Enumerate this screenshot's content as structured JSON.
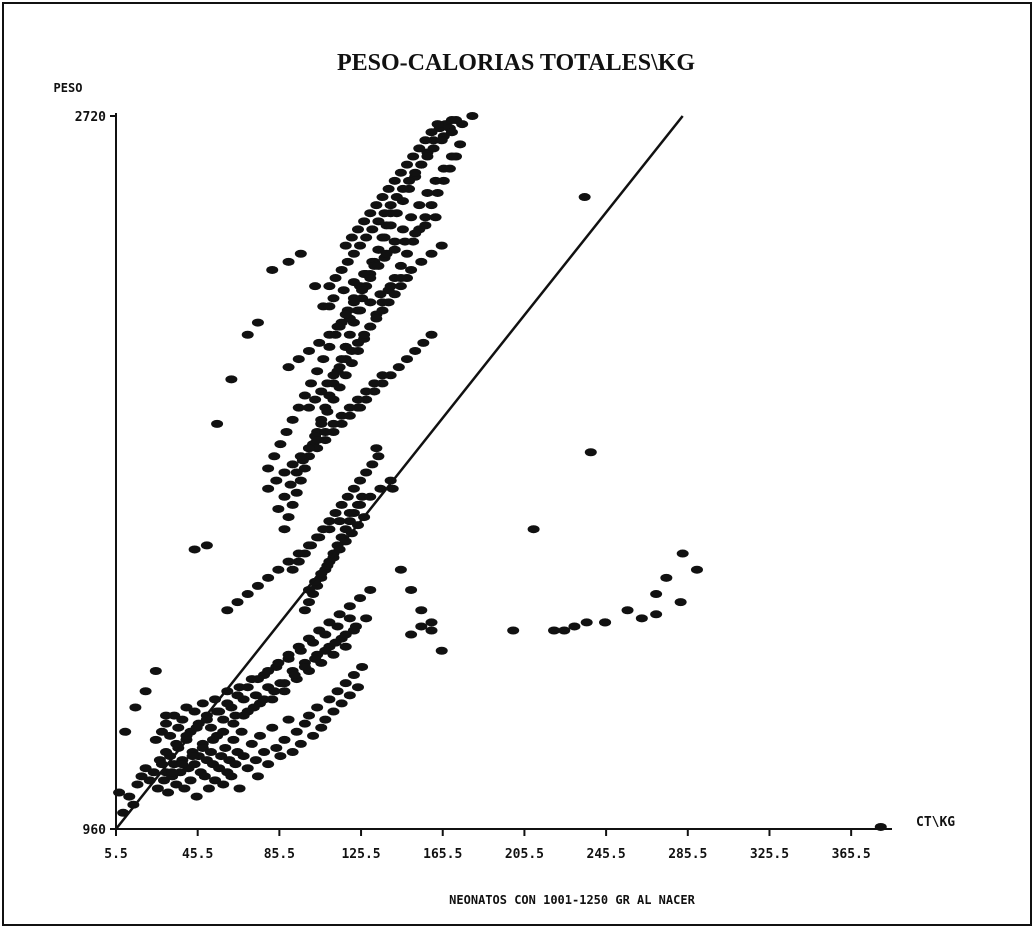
{
  "chart_data": {
    "type": "scatter",
    "title": "PESO-CALORIAS TOTALES\\KG",
    "xlabel": "CT\\KG",
    "ylabel": "PESO",
    "footer": "NEONATOS CON 1001-1250 GR AL NACER",
    "xlim": [
      5.5,
      385.5
    ],
    "ylim": [
      960,
      2720
    ],
    "x_ticks": [
      "5.5",
      "45.5",
      "85.5",
      "125.5",
      "165.5",
      "205.5",
      "245.5",
      "285.5",
      "325.5",
      "365.5"
    ],
    "y_ticks": [
      "2720",
      "960"
    ],
    "grid": false,
    "legend": "none",
    "colors": {
      "points": "#111111",
      "line": "#111111",
      "axes": "#111111"
    },
    "regression_line": {
      "x": [
        5.5,
        283
      ],
      "y": [
        960,
        2720
      ]
    },
    "series": [
      {
        "x": [
          7,
          9,
          12,
          14,
          16,
          18,
          20,
          22,
          24,
          26,
          27,
          28,
          29,
          30,
          31,
          32,
          33,
          34,
          35,
          36,
          37,
          38,
          39,
          40,
          41,
          42,
          43,
          44,
          45,
          46,
          47,
          48,
          49,
          50,
          51,
          52,
          53,
          54,
          55,
          56,
          57,
          58,
          59,
          60,
          61,
          62,
          63,
          64,
          65,
          66,
          67,
          68,
          70,
          72,
          74,
          75,
          76,
          78,
          80,
          82,
          84,
          86,
          88,
          90,
          92,
          94,
          96,
          98,
          100,
          102,
          104,
          106,
          108,
          110,
          112,
          114,
          116,
          118,
          120,
          122,
          124,
          126,
          25,
          28,
          30,
          32,
          34,
          36,
          38,
          40,
          42,
          44,
          46,
          48,
          50,
          52,
          54,
          56,
          58,
          60,
          62,
          64,
          66,
          68,
          70,
          72,
          74,
          76,
          78,
          80,
          82,
          84,
          86,
          88,
          90,
          92,
          94,
          96,
          98,
          100,
          102,
          104,
          106,
          108,
          110,
          112,
          114,
          116,
          118,
          120,
          122,
          30,
          35,
          40,
          45,
          50,
          55,
          60,
          65,
          70,
          75,
          80,
          85,
          90,
          95,
          100,
          105,
          110,
          115,
          120,
          125,
          130,
          33,
          38,
          43,
          48,
          53,
          58,
          63,
          68,
          73,
          78,
          83,
          88,
          93,
          98,
          103,
          108,
          113,
          118,
          123,
          128,
          98,
          100,
          102,
          104,
          106,
          108,
          110,
          112,
          114,
          116,
          118,
          120,
          122,
          124,
          126,
          100,
          103,
          106,
          109,
          112,
          115,
          118,
          121,
          124,
          127,
          92,
          95,
          98,
          101,
          104,
          107,
          110,
          113,
          116,
          119,
          122,
          125,
          128,
          131,
          134,
          88,
          90,
          92,
          94,
          96,
          98,
          100,
          102,
          104,
          106,
          108,
          110,
          112,
          114,
          116,
          118,
          120,
          122,
          124,
          126,
          128,
          130,
          132,
          134,
          136,
          138,
          140,
          85,
          88,
          91,
          94,
          97,
          100,
          103,
          106,
          109,
          112,
          115,
          118,
          121,
          124,
          127,
          130,
          133,
          136,
          139,
          142,
          145,
          148,
          151,
          154,
          157,
          160,
          163,
          166,
          169,
          172,
          80,
          83,
          86,
          89,
          92,
          95,
          98,
          101,
          104,
          107,
          110,
          113,
          116,
          119,
          122,
          125,
          128,
          131,
          134,
          137,
          140,
          143,
          146,
          149,
          152,
          155,
          158,
          161,
          164,
          167,
          170,
          90,
          95,
          100,
          105,
          110,
          115,
          120,
          125,
          130,
          135,
          140,
          145,
          150,
          155,
          160,
          165,
          107,
          112,
          117,
          122,
          127,
          132,
          137,
          142,
          147,
          152,
          157,
          162,
          114,
          118,
          122,
          126,
          130,
          134,
          138,
          142,
          146,
          150,
          154,
          158,
          162,
          166,
          170,
          174,
          118,
          121,
          124,
          127,
          130,
          133,
          136,
          139,
          142,
          145,
          148,
          151,
          154,
          157,
          160,
          163,
          166,
          169,
          172,
          110,
          113,
          116,
          119,
          122,
          125,
          128,
          131,
          134,
          137,
          140,
          143,
          146,
          149,
          152,
          155,
          158,
          161,
          165,
          170,
          175,
          180,
          100,
          103,
          106,
          109,
          112,
          115,
          118,
          121,
          124,
          127,
          130,
          133,
          136,
          139,
          142,
          145,
          148,
          104,
          108,
          112,
          116,
          120,
          124,
          128,
          132,
          136,
          140,
          144,
          148,
          152,
          156,
          160,
          80,
          84,
          88,
          92,
          96,
          100,
          104,
          108,
          112,
          116,
          120,
          124,
          128,
          132,
          136,
          60,
          65,
          70,
          75,
          80,
          85,
          90,
          95,
          100,
          105,
          110,
          115,
          120,
          125,
          130,
          135,
          140,
          44,
          50,
          55,
          62,
          70,
          75,
          82,
          90,
          96,
          103,
          110,
          118,
          125,
          133,
          141,
          145,
          150,
          155,
          160,
          165,
          200,
          225,
          236,
          245,
          256,
          270,
          282,
          235,
          238,
          210,
          220,
          230,
          245,
          263,
          270,
          275,
          283,
          290,
          10,
          15,
          20,
          25,
          30,
          150,
          155,
          160,
          380
        ],
        "y": [
          1050,
          1000,
          1040,
          1020,
          1070,
          1090,
          1110,
          1080,
          1100,
          1060,
          1130,
          1120,
          1080,
          1100,
          1050,
          1140,
          1090,
          1120,
          1070,
          1160,
          1100,
          1130,
          1060,
          1180,
          1110,
          1080,
          1150,
          1120,
          1040,
          1140,
          1100,
          1170,
          1090,
          1130,
          1060,
          1150,
          1120,
          1080,
          1190,
          1110,
          1140,
          1070,
          1160,
          1100,
          1130,
          1090,
          1180,
          1120,
          1150,
          1060,
          1200,
          1140,
          1110,
          1170,
          1130,
          1090,
          1190,
          1150,
          1120,
          1210,
          1160,
          1140,
          1180,
          1230,
          1150,
          1200,
          1170,
          1220,
          1240,
          1190,
          1260,
          1210,
          1230,
          1280,
          1250,
          1300,
          1270,
          1320,
          1290,
          1340,
          1310,
          1360,
          1180,
          1200,
          1220,
          1190,
          1240,
          1210,
          1230,
          1260,
          1200,
          1250,
          1220,
          1270,
          1240,
          1210,
          1280,
          1250,
          1230,
          1300,
          1260,
          1240,
          1310,
          1280,
          1250,
          1330,
          1290,
          1270,
          1340,
          1310,
          1280,
          1360,
          1320,
          1300,
          1380,
          1350,
          1330,
          1400,
          1370,
          1350,
          1420,
          1390,
          1370,
          1440,
          1410,
          1390,
          1460,
          1430,
          1410,
          1480,
          1450,
          1150,
          1170,
          1190,
          1210,
          1230,
          1250,
          1270,
          1290,
          1310,
          1330,
          1350,
          1370,
          1390,
          1410,
          1430,
          1450,
          1470,
          1490,
          1510,
          1530,
          1550,
          1100,
          1120,
          1140,
          1160,
          1180,
          1200,
          1220,
          1240,
          1260,
          1280,
          1300,
          1320,
          1340,
          1360,
          1380,
          1400,
          1420,
          1440,
          1460,
          1480,
          1500,
          1520,
          1540,
          1560,
          1580,
          1600,
          1620,
          1640,
          1660,
          1680,
          1700,
          1720,
          1740,
          1760,
          1780,
          1550,
          1570,
          1590,
          1610,
          1630,
          1650,
          1670,
          1690,
          1710,
          1730,
          1600,
          1620,
          1640,
          1660,
          1680,
          1700,
          1720,
          1740,
          1760,
          1780,
          1800,
          1820,
          1840,
          1860,
          1880,
          1700,
          1730,
          1760,
          1790,
          1820,
          1850,
          1880,
          1910,
          1940,
          1970,
          2000,
          2030,
          2060,
          2090,
          2120,
          2150,
          2180,
          2210,
          2240,
          2270,
          2300,
          2330,
          2360,
          2390,
          2420,
          2450,
          2480,
          1750,
          1780,
          1810,
          1840,
          1870,
          1900,
          1930,
          1960,
          1990,
          2020,
          2050,
          2080,
          2110,
          2140,
          2170,
          2200,
          2230,
          2260,
          2290,
          2320,
          2350,
          2380,
          2410,
          2440,
          2470,
          2500,
          2530,
          2560,
          2590,
          2620,
          1850,
          1880,
          1910,
          1940,
          1970,
          2000,
          2030,
          2060,
          2090,
          2120,
          2150,
          2180,
          2210,
          2240,
          2270,
          2300,
          2330,
          2360,
          2390,
          2420,
          2450,
          2480,
          2510,
          2540,
          2570,
          2600,
          2630,
          2660,
          2690,
          2700,
          2710,
          2100,
          2120,
          2140,
          2160,
          2180,
          2200,
          2220,
          2240,
          2260,
          2280,
          2300,
          2320,
          2340,
          2360,
          2380,
          2400,
          2250,
          2270,
          2290,
          2310,
          2330,
          2350,
          2370,
          2390,
          2410,
          2430,
          2450,
          2470,
          2200,
          2230,
          2260,
          2290,
          2320,
          2350,
          2380,
          2410,
          2440,
          2470,
          2500,
          2530,
          2560,
          2590,
          2620,
          2650,
          2400,
          2420,
          2440,
          2460,
          2480,
          2500,
          2520,
          2540,
          2560,
          2580,
          2600,
          2620,
          2640,
          2660,
          2680,
          2700,
          2670,
          2690,
          2710,
          2300,
          2320,
          2340,
          2360,
          2380,
          2400,
          2420,
          2440,
          2460,
          2480,
          2500,
          2520,
          2540,
          2560,
          2580,
          2600,
          2620,
          2640,
          2660,
          2680,
          2700,
          2720,
          2000,
          2020,
          2040,
          2060,
          2080,
          2100,
          2120,
          2140,
          2160,
          2180,
          2200,
          2220,
          2240,
          2260,
          2280,
          2300,
          2320,
          1900,
          1920,
          1940,
          1960,
          1980,
          2000,
          2020,
          2040,
          2060,
          2080,
          2100,
          2120,
          2140,
          2160,
          2180,
          1800,
          1820,
          1840,
          1860,
          1880,
          1900,
          1920,
          1940,
          1960,
          1980,
          2000,
          2020,
          2040,
          2060,
          2080,
          1500,
          1520,
          1540,
          1560,
          1580,
          1600,
          1620,
          1640,
          1660,
          1680,
          1700,
          1720,
          1740,
          1760,
          1780,
          1800,
          1820,
          1650,
          1660,
          1960,
          2070,
          2180,
          2210,
          2340,
          2360,
          2380,
          2300,
          2250,
          2150,
          2000,
          1900,
          1800,
          1600,
          1550,
          1500,
          1450,
          1400,
          1450,
          1450,
          1470,
          1470,
          1500,
          1540,
          1520,
          2520,
          1890,
          1700,
          1450,
          1460,
          1470,
          1480,
          1490,
          1580,
          1640,
          1600,
          1200,
          1260,
          1300,
          1350,
          1240,
          1440,
          1460,
          1470,
          965
        ]
      }
    ]
  }
}
